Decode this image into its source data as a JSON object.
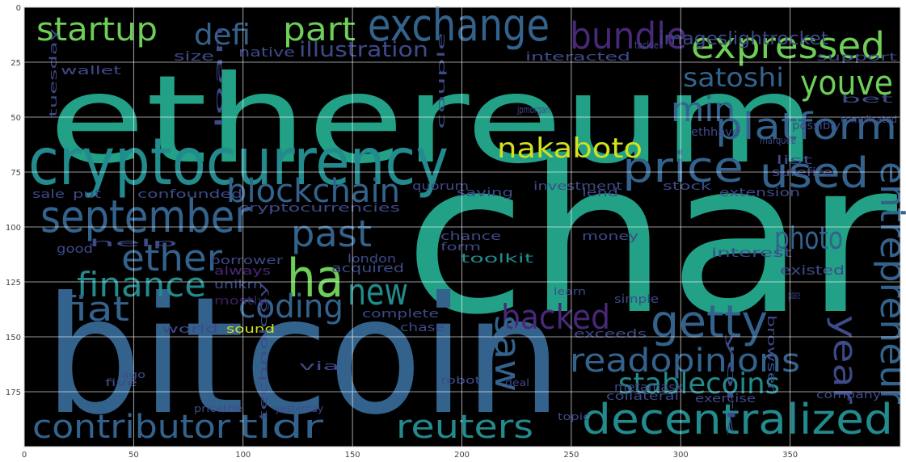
{
  "chart_data": {
    "type": "image",
    "words": [
      "ethereum",
      "char",
      "bitcoin",
      "cryptocurrency",
      "exchange",
      "startup",
      "defi",
      "part",
      "bundle",
      "expressed",
      "illustration",
      "satoshi",
      "youve",
      "min",
      "platform",
      "nakaboto",
      "price",
      "used",
      "blockchain",
      "september",
      "past",
      "ether",
      "photo",
      "ha",
      "finance",
      "new",
      "coding",
      "fiat",
      "backed",
      "getty",
      "saw",
      "entrepreneur",
      "year",
      "readopinions",
      "stablecoins",
      "contributor",
      "tldr",
      "reuters",
      "decentralized",
      "imageslightrocket",
      "wallet",
      "native",
      "size",
      "interacted",
      "investment",
      "cryptocurrencies",
      "london",
      "acquired",
      "toolkit",
      "chance",
      "form",
      "interest",
      "existed",
      "money",
      "stock",
      "extension",
      "lend",
      "surefire",
      "list",
      "ethhave",
      "quorum",
      "saving",
      "confounded",
      "put",
      "sale",
      "good",
      "always",
      "borrower",
      "unikrn",
      "mostly",
      "world",
      "sound",
      "complete",
      "chase",
      "exceeds",
      "simple",
      "browser",
      "via",
      "robot",
      "deal",
      "metamask",
      "collateral",
      "exercise",
      "company",
      "technology",
      "ago",
      "five",
      "topic",
      "tuesday",
      "loan",
      "possibly",
      "jpmorgan",
      "couple",
      "tackle",
      "support",
      "bet",
      "complicated",
      "marquee",
      "guidance",
      "learn",
      "york",
      "help",
      "pricethe",
      "yesterday"
    ],
    "xlim": [
      0,
      400
    ],
    "ylim": [
      200,
      0
    ],
    "xticks": [
      0,
      50,
      100,
      150,
      200,
      250,
      300,
      350
    ],
    "yticks": [
      0,
      25,
      50,
      75,
      100,
      125,
      150,
      175
    ],
    "grid": true
  }
}
